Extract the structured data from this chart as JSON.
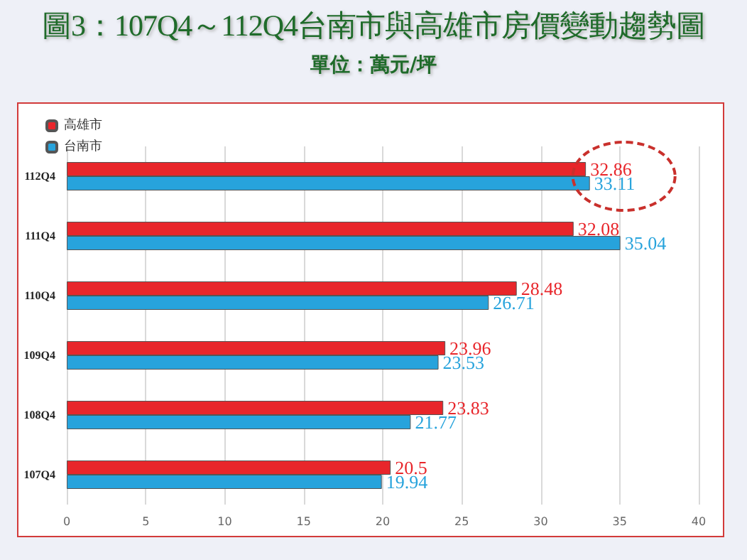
{
  "chart_data": {
    "type": "bar",
    "orientation": "horizontal",
    "title": "圖3：107Q4～112Q4台南市與高雄市房價變動趨勢圖",
    "subtitle": "單位：萬元/坪",
    "categories": [
      "112Q4",
      "111Q4",
      "110Q4",
      "109Q4",
      "108Q4",
      "107Q4"
    ],
    "series": [
      {
        "name": "高雄市",
        "color": "#e8262b",
        "values": [
          32.86,
          32.08,
          28.48,
          23.96,
          23.83,
          20.5
        ]
      },
      {
        "name": "台南市",
        "color": "#27a3dc",
        "values": [
          33.11,
          35.04,
          26.71,
          23.53,
          21.77,
          19.94
        ]
      }
    ],
    "xlim": [
      0,
      40
    ],
    "xticks": [
      0,
      5,
      10,
      15,
      20,
      25,
      30,
      35,
      40
    ],
    "grid": "x",
    "legend": "top left",
    "data_labels": true
  }
}
